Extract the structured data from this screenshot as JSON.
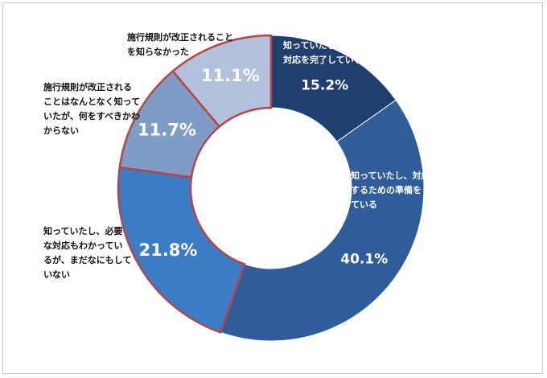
{
  "chart_data": {
    "type": "pie",
    "variant": "donut",
    "start": "top, clockwise",
    "slices": [
      {
        "label": [
          "知っていたし、すでに",
          "対応を完了している"
        ],
        "value": 15.2,
        "value_text": "15.2%",
        "color": "#1f3f6e"
      },
      {
        "label": [
          "知っていたし、対応",
          "するための準備をし",
          "ている"
        ],
        "value": 40.1,
        "value_text": "40.1%",
        "color": "#2f5c9a"
      },
      {
        "label": [
          "知っていたし、必要",
          "な対応もわかってい",
          "るが、まだなにもして",
          "いない"
        ],
        "value": 21.8,
        "value_text": "21.8%",
        "color": "#3b7cc6"
      },
      {
        "label": [
          "施行規則が改正される",
          "ことはなんとなく知って",
          "いたが、何をすべきかわ",
          "からない"
        ],
        "value": 11.7,
        "value_text": "11.7%",
        "color": "#7f9cc6"
      },
      {
        "label": [
          "施行規則が改正されること",
          "を知らなかった"
        ],
        "value": 11.1,
        "value_text": "11.1%",
        "color": "#b2c2dc"
      }
    ],
    "highlight_border_color": "#b84545"
  }
}
